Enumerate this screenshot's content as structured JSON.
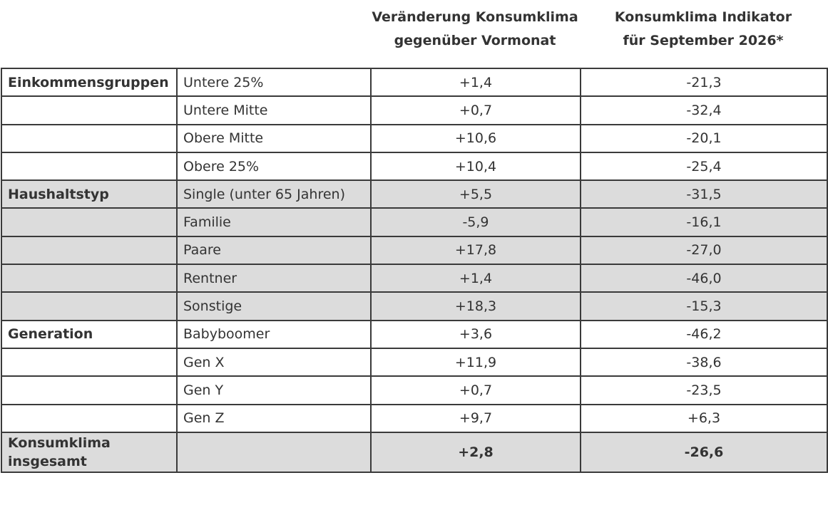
{
  "header": {
    "col1_line1": "Veränderung Konsumklima",
    "col1_line2": "gegenüber Vormonat",
    "col2_line1": "Konsumklima Indikator",
    "col2_line2": "für September 2026*"
  },
  "rows": [
    {
      "group": "Einkommensgruppen",
      "label": "Untere 25%",
      "change": "+1,4",
      "indicator": "-21,3"
    },
    {
      "group": "",
      "label": "Untere Mitte",
      "change": "+0,7",
      "indicator": "-32,4"
    },
    {
      "group": "",
      "label": "Obere Mitte",
      "change": "+10,6",
      "indicator": "-20,1"
    },
    {
      "group": "",
      "label": "Obere 25%",
      "change": "+10,4",
      "indicator": "-25,4"
    },
    {
      "group": "Haushaltstyp",
      "label": "Single (unter 65 Jahren)",
      "change": "+5,5",
      "indicator": "-31,5"
    },
    {
      "group": "",
      "label": "Familie",
      "change": "-5,9",
      "indicator": "-16,1"
    },
    {
      "group": "",
      "label": "Paare",
      "change": "+17,8",
      "indicator": "-27,0"
    },
    {
      "group": "",
      "label": "Rentner",
      "change": "+1,4",
      "indicator": "-46,0"
    },
    {
      "group": "",
      "label": "Sonstige",
      "change": "+18,3",
      "indicator": "-15,3"
    },
    {
      "group": "Generation",
      "label": "Babyboomer",
      "change": "+3,6",
      "indicator": "-46,2"
    },
    {
      "group": "",
      "label": "Gen X",
      "change": "+11,9",
      "indicator": "-38,6"
    },
    {
      "group": "",
      "label": "Gen Y",
      "change": "+0,7",
      "indicator": "-23,5"
    },
    {
      "group": "",
      "label": "Gen Z",
      "change": "+9,7",
      "indicator": "+6,3"
    }
  ],
  "total": {
    "label_line1": "Konsumklima",
    "label_line2": "insgesamt",
    "change": "+2,8",
    "indicator": "-26,6"
  },
  "colors": {
    "shaded_row": "#dcdcdc",
    "border": "#3a3a3a",
    "text": "#333333"
  }
}
